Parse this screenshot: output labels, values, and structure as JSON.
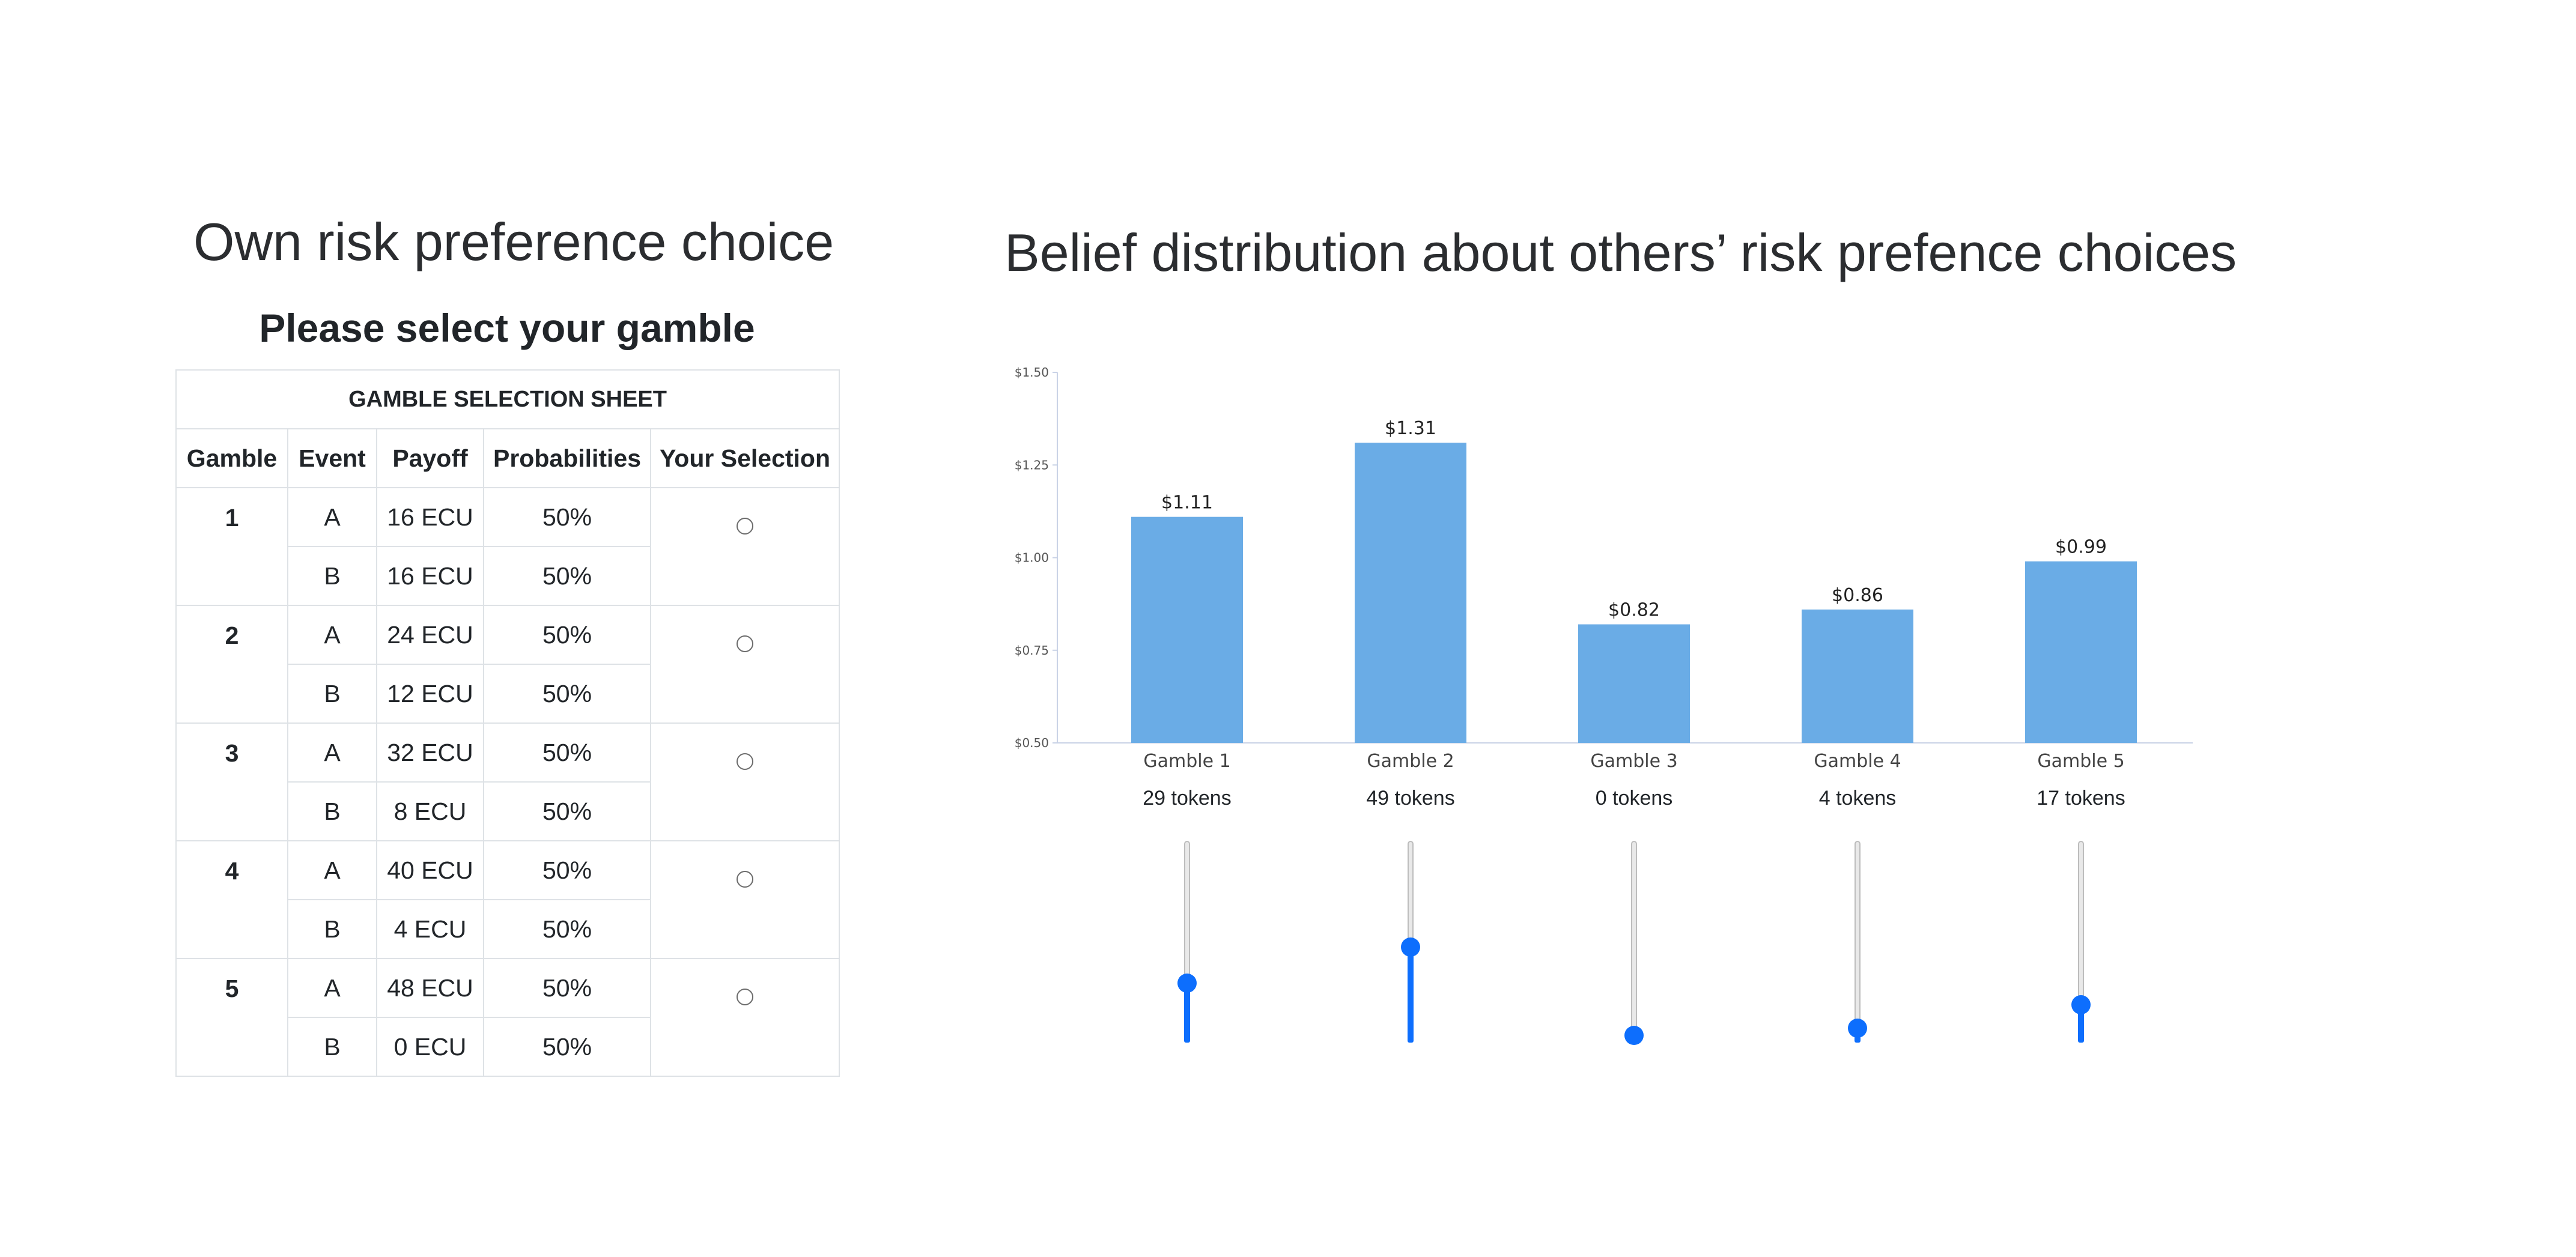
{
  "left": {
    "heading": "Own risk preference choice",
    "caption": "Please select your gamble",
    "sheet_title": "GAMBLE SELECTION SHEET",
    "columns": [
      "Gamble",
      "Event",
      "Payoff",
      "Probabilities",
      "Your Selection"
    ],
    "gambles": [
      {
        "number": "1",
        "rows": [
          {
            "event": "A",
            "payoff": "16 ECU",
            "prob": "50%"
          },
          {
            "event": "B",
            "payoff": "16 ECU",
            "prob": "50%"
          }
        ]
      },
      {
        "number": "2",
        "rows": [
          {
            "event": "A",
            "payoff": "24 ECU",
            "prob": "50%"
          },
          {
            "event": "B",
            "payoff": "12 ECU",
            "prob": "50%"
          }
        ]
      },
      {
        "number": "3",
        "rows": [
          {
            "event": "A",
            "payoff": "32 ECU",
            "prob": "50%"
          },
          {
            "event": "B",
            "payoff": "8 ECU",
            "prob": "50%"
          }
        ]
      },
      {
        "number": "4",
        "rows": [
          {
            "event": "A",
            "payoff": "40 ECU",
            "prob": "50%"
          },
          {
            "event": "B",
            "payoff": "4 ECU",
            "prob": "50%"
          }
        ]
      },
      {
        "number": "5",
        "rows": [
          {
            "event": "A",
            "payoff": "48 ECU",
            "prob": "50%"
          },
          {
            "event": "B",
            "payoff": "0 ECU",
            "prob": "50%"
          }
        ]
      }
    ]
  },
  "right": {
    "heading": "Belief distribution about others’ risk prefence choices",
    "accent_color": "#0d6efd",
    "tokens": [
      {
        "label": "29 tokens",
        "value": 29
      },
      {
        "label": "49 tokens",
        "value": 49
      },
      {
        "label": "0 tokens",
        "value": 0
      },
      {
        "label": "4 tokens",
        "value": 4
      },
      {
        "label": "17 tokens",
        "value": 17
      }
    ],
    "slider_max": 100
  },
  "chart_data": {
    "type": "bar",
    "categories": [
      "Gamble 1",
      "Gamble 2",
      "Gamble 3",
      "Gamble 4",
      "Gamble 5"
    ],
    "values": [
      1.11,
      1.31,
      0.82,
      0.86,
      0.99
    ],
    "value_labels": [
      "$1.11",
      "$1.31",
      "$0.82",
      "$0.86",
      "$0.99"
    ],
    "ylim": [
      0.5,
      1.5
    ],
    "yticks": [
      0.5,
      0.75,
      1.0,
      1.25,
      1.5
    ],
    "ytick_labels": [
      "$0.50",
      "$0.75",
      "$1.00",
      "$1.25",
      "$1.50"
    ],
    "bar_color": "#6aace6",
    "grid": false
  }
}
